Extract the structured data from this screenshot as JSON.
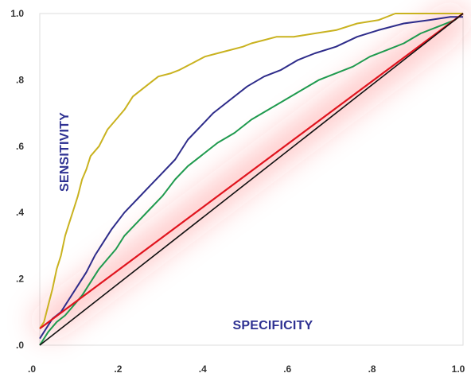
{
  "chart_data": {
    "type": "line",
    "xlabel": "SPECIFICITY",
    "ylabel": "SENSITIVITY",
    "xlim": [
      0,
      1
    ],
    "ylim": [
      0,
      1
    ],
    "x_ticks": [
      ".0",
      ".2",
      ".4",
      ".6",
      ".8",
      "1.0"
    ],
    "y_ticks": [
      ".0",
      ".2",
      ".4",
      ".6",
      ".8",
      "1.0"
    ],
    "grid": false,
    "legend": "none",
    "series": [
      {
        "color": "#c9b21f",
        "x": [
          0.0,
          0.01,
          0.02,
          0.03,
          0.04,
          0.05,
          0.06,
          0.07,
          0.08,
          0.09,
          0.1,
          0.11,
          0.12,
          0.14,
          0.16,
          0.18,
          0.2,
          0.22,
          0.25,
          0.28,
          0.31,
          0.33,
          0.36,
          0.39,
          0.42,
          0.45,
          0.48,
          0.5,
          0.53,
          0.56,
          0.6,
          0.65,
          0.7,
          0.75,
          0.8,
          0.84,
          0.9,
          1.0
        ],
        "values": [
          0.05,
          0.07,
          0.12,
          0.17,
          0.23,
          0.27,
          0.33,
          0.37,
          0.41,
          0.45,
          0.5,
          0.53,
          0.57,
          0.6,
          0.65,
          0.68,
          0.71,
          0.75,
          0.78,
          0.81,
          0.82,
          0.83,
          0.85,
          0.87,
          0.88,
          0.89,
          0.9,
          0.91,
          0.92,
          0.93,
          0.93,
          0.94,
          0.95,
          0.97,
          0.98,
          1.0,
          1.0,
          1.0
        ]
      },
      {
        "color": "#2e2c8a",
        "x": [
          0.0,
          0.01,
          0.02,
          0.03,
          0.05,
          0.07,
          0.09,
          0.11,
          0.13,
          0.15,
          0.17,
          0.2,
          0.23,
          0.26,
          0.29,
          0.32,
          0.35,
          0.38,
          0.41,
          0.45,
          0.49,
          0.53,
          0.57,
          0.61,
          0.65,
          0.7,
          0.75,
          0.8,
          0.86,
          0.92,
          0.97,
          1.0
        ],
        "values": [
          0.02,
          0.04,
          0.06,
          0.08,
          0.1,
          0.14,
          0.18,
          0.22,
          0.27,
          0.31,
          0.35,
          0.4,
          0.44,
          0.48,
          0.52,
          0.56,
          0.62,
          0.66,
          0.7,
          0.74,
          0.78,
          0.81,
          0.83,
          0.86,
          0.88,
          0.9,
          0.93,
          0.95,
          0.97,
          0.98,
          0.99,
          0.99
        ]
      },
      {
        "color": "#1f9a4e",
        "x": [
          0.0,
          0.01,
          0.02,
          0.04,
          0.06,
          0.08,
          0.1,
          0.12,
          0.14,
          0.16,
          0.18,
          0.2,
          0.23,
          0.26,
          0.29,
          0.32,
          0.35,
          0.38,
          0.42,
          0.46,
          0.5,
          0.54,
          0.58,
          0.62,
          0.66,
          0.7,
          0.74,
          0.78,
          0.82,
          0.86,
          0.9,
          0.94,
          0.98,
          1.0
        ],
        "values": [
          0.0,
          0.02,
          0.04,
          0.07,
          0.09,
          0.12,
          0.15,
          0.19,
          0.23,
          0.26,
          0.29,
          0.33,
          0.37,
          0.41,
          0.45,
          0.5,
          0.54,
          0.57,
          0.61,
          0.64,
          0.68,
          0.71,
          0.74,
          0.77,
          0.8,
          0.82,
          0.84,
          0.87,
          0.89,
          0.91,
          0.94,
          0.96,
          0.98,
          1.0
        ]
      },
      {
        "color": "#e0141e",
        "x": [
          0.0,
          1.0
        ],
        "values": [
          0.05,
          1.0
        ]
      },
      {
        "color": "#111111",
        "x": [
          0.0,
          1.0
        ],
        "values": [
          0.0,
          1.0
        ]
      }
    ]
  },
  "colors": {
    "axis_title": "#2e3192",
    "tick_label": "#333333",
    "plot_border": "#dddddd",
    "glow": "#ff2d2d"
  }
}
